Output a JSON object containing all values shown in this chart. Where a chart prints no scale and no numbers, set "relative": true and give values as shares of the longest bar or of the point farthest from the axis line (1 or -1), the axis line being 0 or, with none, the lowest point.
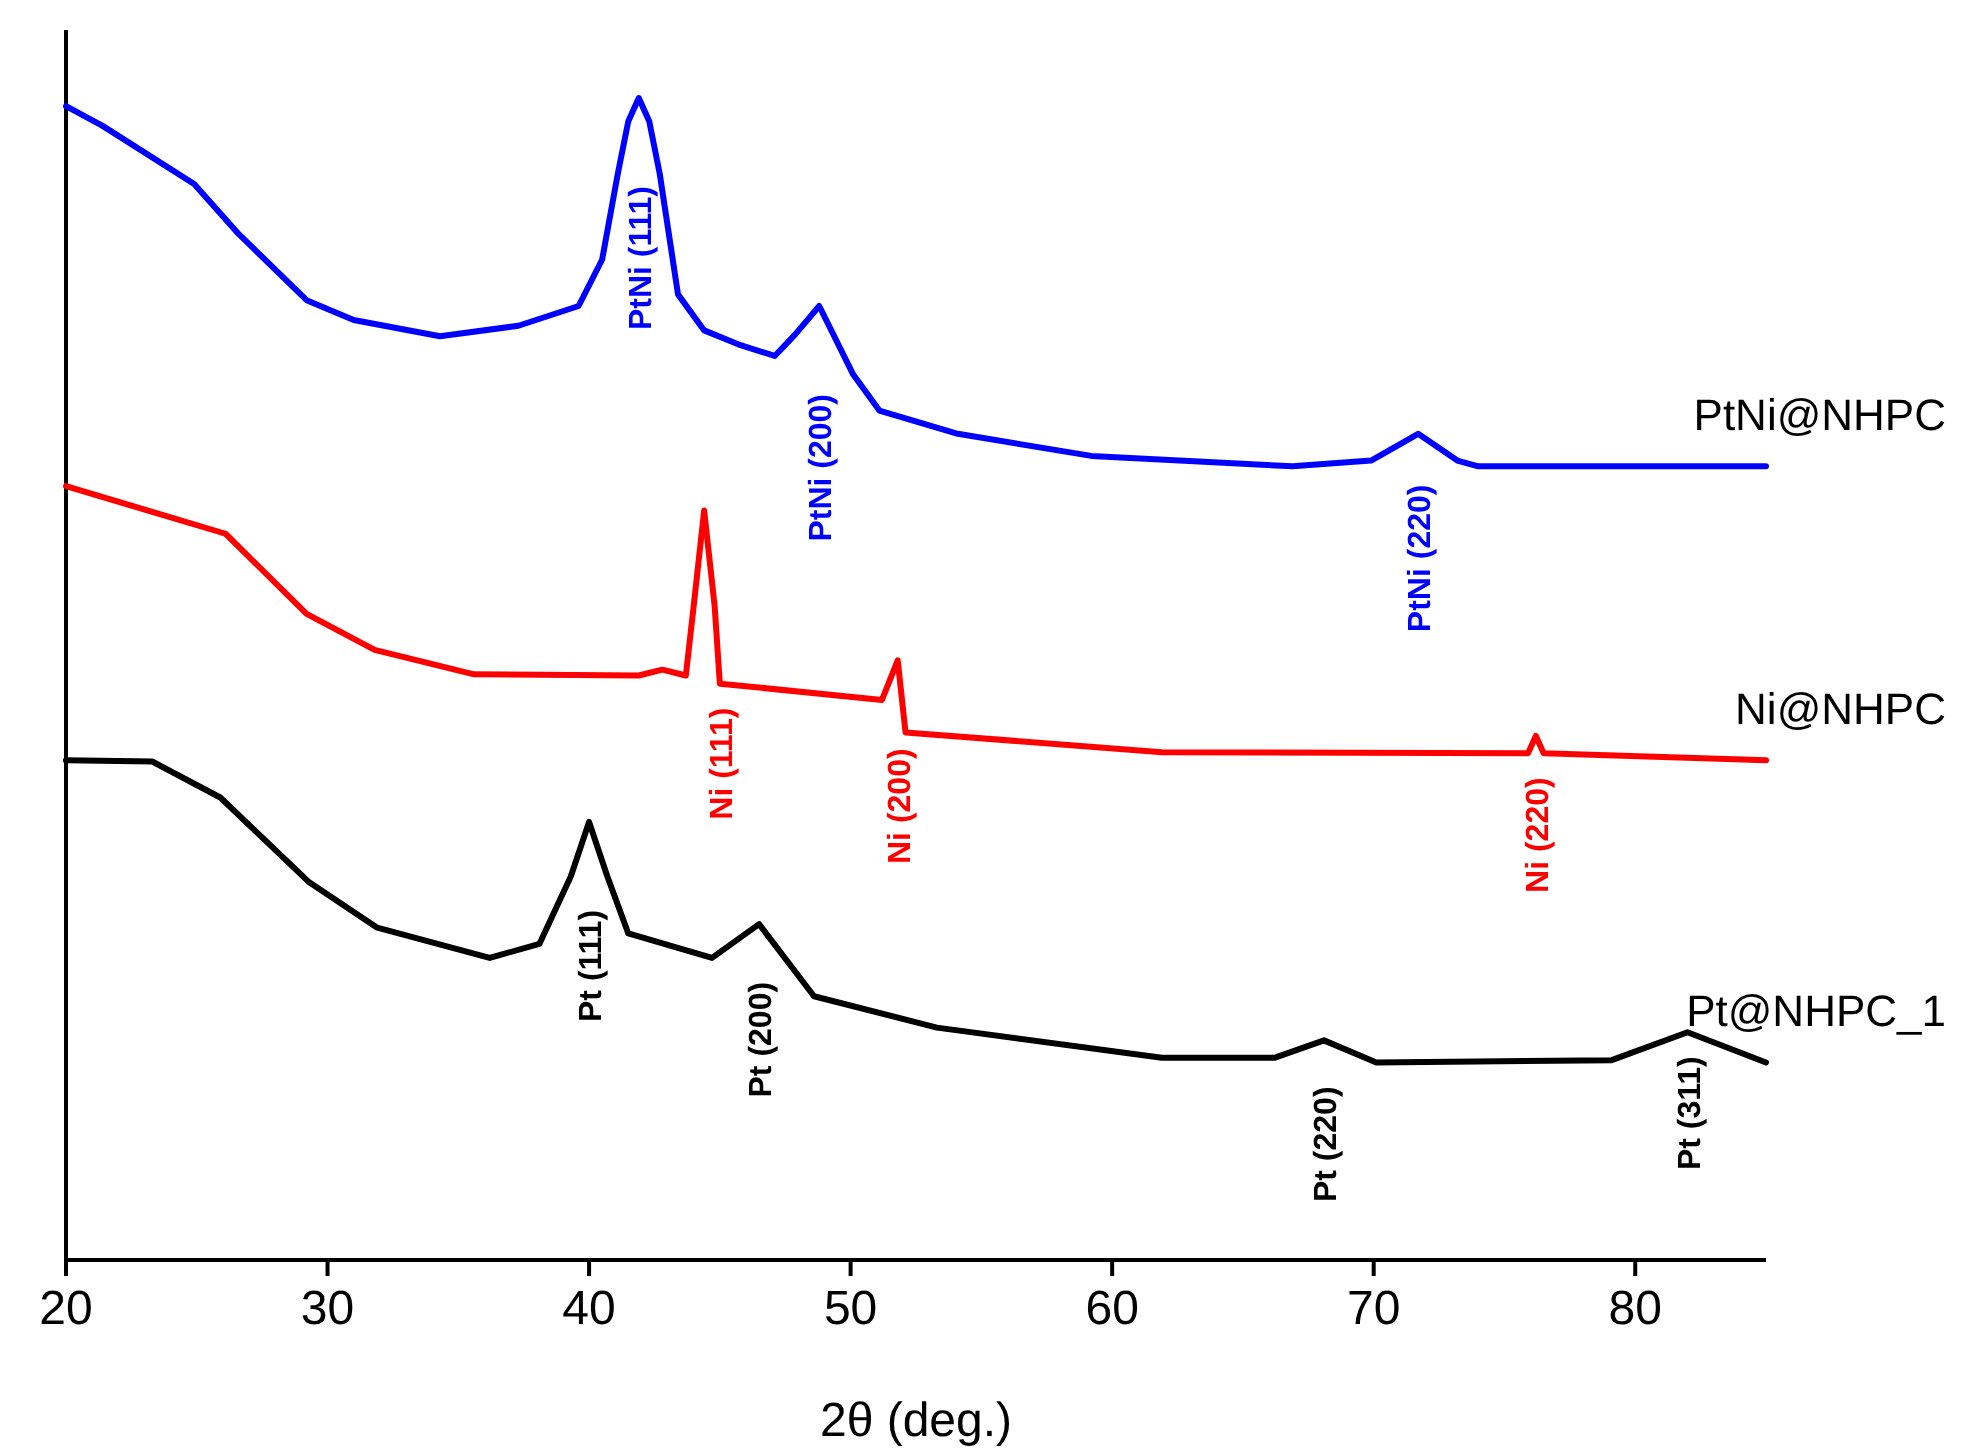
{
  "chart_data": {
    "type": "line",
    "relative": true,
    "xlabel": "2θ (deg.)",
    "xlim": [
      20,
      85
    ],
    "xticks": [
      20,
      30,
      40,
      50,
      60,
      70,
      80
    ],
    "series": [
      {
        "name": "PtNi@NHPC",
        "color": "#0000ff",
        "x": [
          20,
          21.4,
          24.9,
          26.6,
          29.2,
          31,
          34.3,
          37.3,
          39.6,
          40.5,
          41.1,
          41.5,
          41.9,
          42.3,
          42.7,
          43.4,
          44.4,
          45.7,
          47.1,
          47.9,
          48.8,
          50.1,
          51.1,
          54.1,
          59.2,
          66.9,
          69.9,
          71.7,
          73.2,
          74,
          85
        ],
        "values": [
          0.993,
          0.976,
          0.926,
          0.883,
          0.826,
          0.809,
          0.795,
          0.804,
          0.821,
          0.861,
          0.935,
          0.98,
          1,
          0.98,
          0.935,
          0.831,
          0.8,
          0.788,
          0.778,
          0.797,
          0.821,
          0.762,
          0.731,
          0.711,
          0.692,
          0.683,
          0.688,
          0.711,
          0.688,
          0.683,
          0.683
        ]
      },
      {
        "name": "Ni@NHPC",
        "color": "#ff0000",
        "x": [
          20,
          26.1,
          29.2,
          31.8,
          35.6,
          41.9,
          42.8,
          43.7,
          44.0,
          44.4,
          44.8,
          45,
          51.2,
          51.8,
          52.1,
          61.9,
          75.9,
          76.2,
          76.5,
          85
        ],
        "values": [
          0.666,
          0.625,
          0.556,
          0.525,
          0.504,
          0.503,
          0.508,
          0.503,
          0.563,
          0.645,
          0.563,
          0.496,
          0.482,
          0.516,
          0.454,
          0.437,
          0.436,
          0.451,
          0.436,
          0.43
        ]
      },
      {
        "name": "Pt@NHPC_1",
        "color": "#000000",
        "x": [
          20,
          23.3,
          25.9,
          29.3,
          31.9,
          36.2,
          38.1,
          39.3,
          40,
          40.7,
          41.5,
          44.7,
          46.5,
          48.6,
          53.3,
          61.9,
          66.2,
          68.1,
          70.1,
          79.1,
          82,
          85
        ],
        "values": [
          0.43,
          0.429,
          0.398,
          0.325,
          0.286,
          0.26,
          0.272,
          0.33,
          0.377,
          0.33,
          0.281,
          0.26,
          0.289,
          0.227,
          0.2,
          0.174,
          0.174,
          0.189,
          0.17,
          0.172,
          0.196,
          0.17
        ]
      }
    ],
    "annotations": [
      {
        "text": "PtNi (111)",
        "x": 41.9,
        "y": 1
      },
      {
        "text": "PtNi (200)",
        "x": 48.8,
        "y": 0.821
      },
      {
        "text": "PtNi (220)",
        "x": 71.7,
        "y": 0.711
      },
      {
        "text": "Ni (111)",
        "x": 45,
        "y": 0.496
      },
      {
        "text": "Ni (200)",
        "x": 51.8,
        "y": 0.516
      },
      {
        "text": "Ni (220)",
        "x": 76.2,
        "y": 0.451
      },
      {
        "text": "Pt (111)",
        "x": 40,
        "y": 0.377
      },
      {
        "text": "Pt (200)",
        "x": 46.5,
        "y": 0.289
      },
      {
        "text": "Pt (220)",
        "x": 68.1,
        "y": 0.189
      },
      {
        "text": "Pt (311)",
        "x": 82,
        "y": 0.196
      }
    ]
  }
}
